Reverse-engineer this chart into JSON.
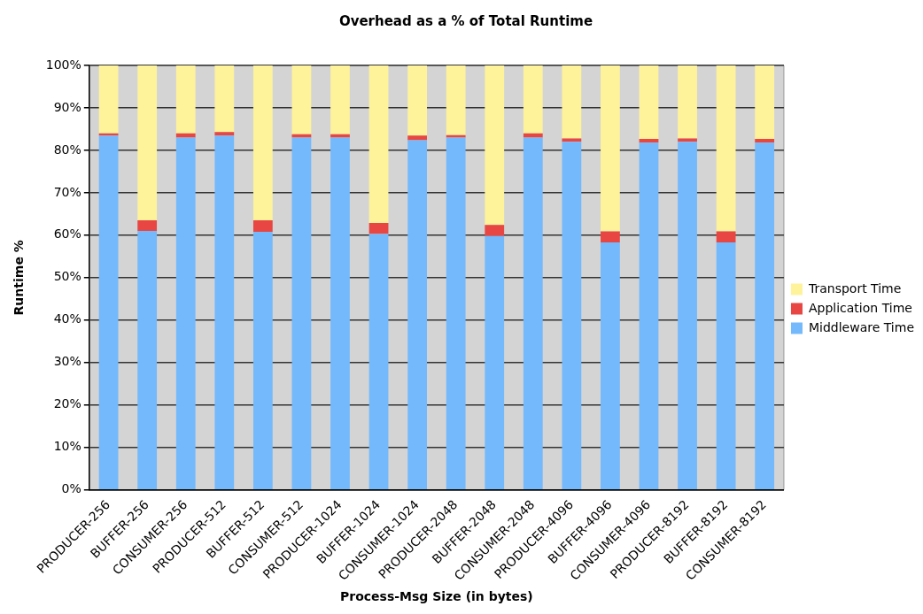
{
  "chart_data": {
    "type": "bar",
    "title": "Overhead as a % of Total Runtime",
    "xlabel": "Process-Msg Size (in bytes)",
    "ylabel": "Runtime %",
    "categories": [
      "PRODUCER-256",
      "BUFFER-256",
      "CONSUMER-256",
      "PRODUCER-512",
      "BUFFER-512",
      "CONSUMER-512",
      "PRODUCER-1024",
      "BUFFER-1024",
      "CONSUMER-1024",
      "PRODUCER-2048",
      "BUFFER-2048",
      "CONSUMER-2048",
      "PRODUCER-4096",
      "BUFFER-4096",
      "CONSUMER-4096",
      "PRODUCER-8192",
      "BUFFER-8192",
      "CONSUMER-8192"
    ],
    "stacked": true,
    "legend": "right",
    "grid": "y",
    "series": [
      {
        "name": "Middleware Time",
        "color": "#74b9fc",
        "values": [
          83.5,
          61,
          83,
          83.5,
          60.8,
          83,
          83,
          60.3,
          82.4,
          83,
          59.8,
          83,
          82,
          58.3,
          81.8,
          82,
          58.3,
          81.8
        ]
      },
      {
        "name": "Application Time",
        "color": "#e84642",
        "values": [
          0.5,
          2.5,
          1,
          0.8,
          2.7,
          0.8,
          0.8,
          2.6,
          1.1,
          0.6,
          2.6,
          1,
          0.8,
          2.6,
          0.9,
          0.8,
          2.6,
          0.9
        ]
      },
      {
        "name": "Transport Time",
        "color": "#fef29b",
        "values": [
          16,
          36.5,
          16,
          15.7,
          36.5,
          16.2,
          16.2,
          37.1,
          16.5,
          16.4,
          37.6,
          16,
          17.2,
          39.1,
          17.3,
          17.2,
          39.1,
          17.3
        ]
      }
    ],
    "ylim": [
      0,
      100
    ],
    "yticks": [
      {
        "value": 0,
        "label": "0%"
      },
      {
        "value": 10,
        "label": "10%"
      },
      {
        "value": 20,
        "label": "20%"
      },
      {
        "value": 30,
        "label": "30%"
      },
      {
        "value": 40,
        "label": "40%"
      },
      {
        "value": 50,
        "label": "50%"
      },
      {
        "value": 60,
        "label": "60%"
      },
      {
        "value": 70,
        "label": "70%"
      },
      {
        "value": 80,
        "label": "80%"
      },
      {
        "value": 90,
        "label": "90%"
      },
      {
        "value": 100,
        "label": "100%"
      }
    ]
  }
}
